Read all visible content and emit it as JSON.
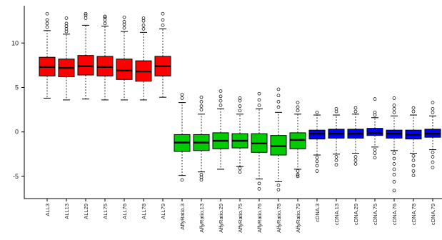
{
  "chart_data": {
    "type": "boxplot",
    "title": "",
    "xlabel": "",
    "ylabel": "",
    "ylim": [
      -7.5,
      14.2
    ],
    "yticks": [
      10,
      5,
      0,
      -5
    ],
    "grid": false,
    "colors": {
      "group_a": "#ff0000",
      "group_b": "#00cc00",
      "group_c": "#0000ff"
    },
    "categories": [
      "ALL3",
      "ALL13",
      "ALL29",
      "ALL75",
      "ALL76",
      "ALL78",
      "ALL79",
      "AffyRatio.3",
      "AffyRatio.13",
      "AffyRatio.29",
      "AffyRatio.75",
      "AffyRatio.76",
      "AffyRatio.78",
      "AffyRatio.79",
      "cDNA.3",
      "cDNA.13",
      "cDNA.29",
      "cDNA.75",
      "cDNA.76",
      "cDNA.78",
      "cDNA.79"
    ],
    "boxes": [
      {
        "group": "group_a",
        "whisker_low": 3.8,
        "q1": 6.3,
        "median": 7.3,
        "q3": 8.4,
        "whisker_high": 11.4,
        "outliers": [
          11.8,
          12.2,
          12.6,
          13.3
        ]
      },
      {
        "group": "group_a",
        "whisker_low": 3.6,
        "q1": 6.2,
        "median": 7.2,
        "q3": 8.2,
        "whisker_high": 11.0,
        "outliers": [
          11.3,
          11.6,
          11.9,
          12.2,
          12.8
        ]
      },
      {
        "group": "group_a",
        "whisker_low": 3.7,
        "q1": 6.4,
        "median": 7.4,
        "q3": 8.6,
        "whisker_high": 12.0,
        "outliers": [
          12.8,
          13.1,
          13.3
        ]
      },
      {
        "group": "group_a",
        "whisker_low": 3.6,
        "q1": 6.3,
        "median": 7.3,
        "q3": 8.5,
        "whisker_high": 11.9,
        "outliers": [
          12.2,
          12.6,
          12.9,
          13.0
        ]
      },
      {
        "group": "group_a",
        "whisker_low": 3.6,
        "q1": 5.9,
        "median": 6.9,
        "q3": 8.2,
        "whisker_high": 11.3,
        "outliers": [
          11.7,
          12.1,
          12.4,
          12.9
        ]
      },
      {
        "group": "group_a",
        "whisker_low": 3.6,
        "q1": 5.7,
        "median": 6.8,
        "q3": 8.0,
        "whisker_high": 11.2,
        "outliers": [
          11.6,
          12.0,
          12.5,
          12.8
        ]
      },
      {
        "group": "group_a",
        "whisker_low": 3.9,
        "q1": 6.3,
        "median": 7.4,
        "q3": 8.5,
        "whisker_high": 11.6,
        "outliers": [
          12.0,
          12.6,
          13.3
        ]
      },
      {
        "group": "group_b",
        "whisker_low": -4.9,
        "q1": -2.2,
        "median": -1.2,
        "q3": -0.3,
        "whisker_high": 3.3,
        "outliers": [
          3.8,
          4.2,
          -5.4
        ]
      },
      {
        "group": "group_b",
        "whisker_low": -4.5,
        "q1": -2.1,
        "median": -1.2,
        "q3": -0.3,
        "whisker_high": 2.0,
        "outliers": [
          2.5,
          2.9,
          3.4,
          3.9,
          -4.8,
          -5.1,
          -5.4
        ]
      },
      {
        "group": "group_b",
        "whisker_low": -4.2,
        "q1": -1.9,
        "median": -1.0,
        "q3": -0.1,
        "whisker_high": 2.6,
        "outliers": [
          3.0,
          3.5,
          4.0,
          4.6
        ]
      },
      {
        "group": "group_b",
        "whisker_low": -3.9,
        "q1": -1.8,
        "median": -1.0,
        "q3": -0.2,
        "whisker_high": 2.0,
        "outliers": [
          2.4,
          2.9,
          3.5,
          3.8,
          -4.1,
          -4.5
        ]
      },
      {
        "group": "group_b",
        "whisker_low": -5.3,
        "q1": -2.3,
        "median": -1.3,
        "q3": -0.2,
        "whisker_high": 2.6,
        "outliers": [
          3.0,
          3.6,
          4.3,
          -5.8,
          -6.4
        ]
      },
      {
        "group": "group_b",
        "whisker_low": -5.6,
        "q1": -2.6,
        "median": -1.6,
        "q3": -0.4,
        "whisker_high": 2.2,
        "outliers": [
          2.8,
          3.4,
          4.1,
          4.8,
          -6.0,
          -6.5
        ]
      },
      {
        "group": "group_b",
        "whisker_low": -4.2,
        "q1": -1.9,
        "median": -0.9,
        "q3": -0.1,
        "whisker_high": 2.0,
        "outliers": [
          2.4,
          2.8,
          3.3,
          -4.4,
          -4.8,
          -5.0
        ]
      },
      {
        "group": "group_c",
        "whisker_low": -2.6,
        "q1": -0.8,
        "median": -0.2,
        "q3": 0.2,
        "whisker_high": 1.9,
        "outliers": [
          2.2,
          -2.9,
          -3.3,
          -3.8,
          -4.4
        ]
      },
      {
        "group": "group_c",
        "whisker_low": -2.5,
        "q1": -0.7,
        "median": -0.2,
        "q3": 0.3,
        "whisker_high": 1.9,
        "outliers": [
          2.3,
          2.6,
          -2.8,
          -3.2,
          -3.7
        ]
      },
      {
        "group": "group_c",
        "whisker_low": -2.4,
        "q1": -0.7,
        "median": -0.2,
        "q3": 0.3,
        "whisker_high": 2.0,
        "outliers": [
          2.3,
          2.7,
          -2.8,
          -3.2,
          -3.6
        ]
      },
      {
        "group": "group_c",
        "whisker_low": -1.7,
        "q1": -0.4,
        "median": -0.1,
        "q3": 0.4,
        "whisker_high": 1.6,
        "outliers": [
          1.9,
          2.2,
          3.7,
          -2.0,
          -2.4,
          -2.9
        ]
      },
      {
        "group": "group_c",
        "whisker_low": -2.1,
        "q1": -0.7,
        "median": -0.2,
        "q3": 0.2,
        "whisker_high": 1.8,
        "outliers": [
          2.2,
          2.6,
          3.0,
          3.8,
          -2.4,
          -3.0,
          -3.6,
          -4.2,
          -4.8,
          -5.6,
          -6.6
        ]
      },
      {
        "group": "group_c",
        "whisker_low": -2.4,
        "q1": -0.8,
        "median": -0.3,
        "q3": 0.2,
        "whisker_high": 1.9,
        "outliers": [
          2.3,
          2.7,
          -2.7,
          -3.2,
          -3.8,
          -4.4,
          -4.9
        ]
      },
      {
        "group": "group_c",
        "whisker_low": -2.0,
        "q1": -0.6,
        "median": -0.2,
        "q3": 0.3,
        "whisker_high": 1.8,
        "outliers": [
          2.2,
          2.6,
          3.3,
          -2.3,
          -2.8,
          -3.4,
          -4.0
        ]
      }
    ]
  }
}
